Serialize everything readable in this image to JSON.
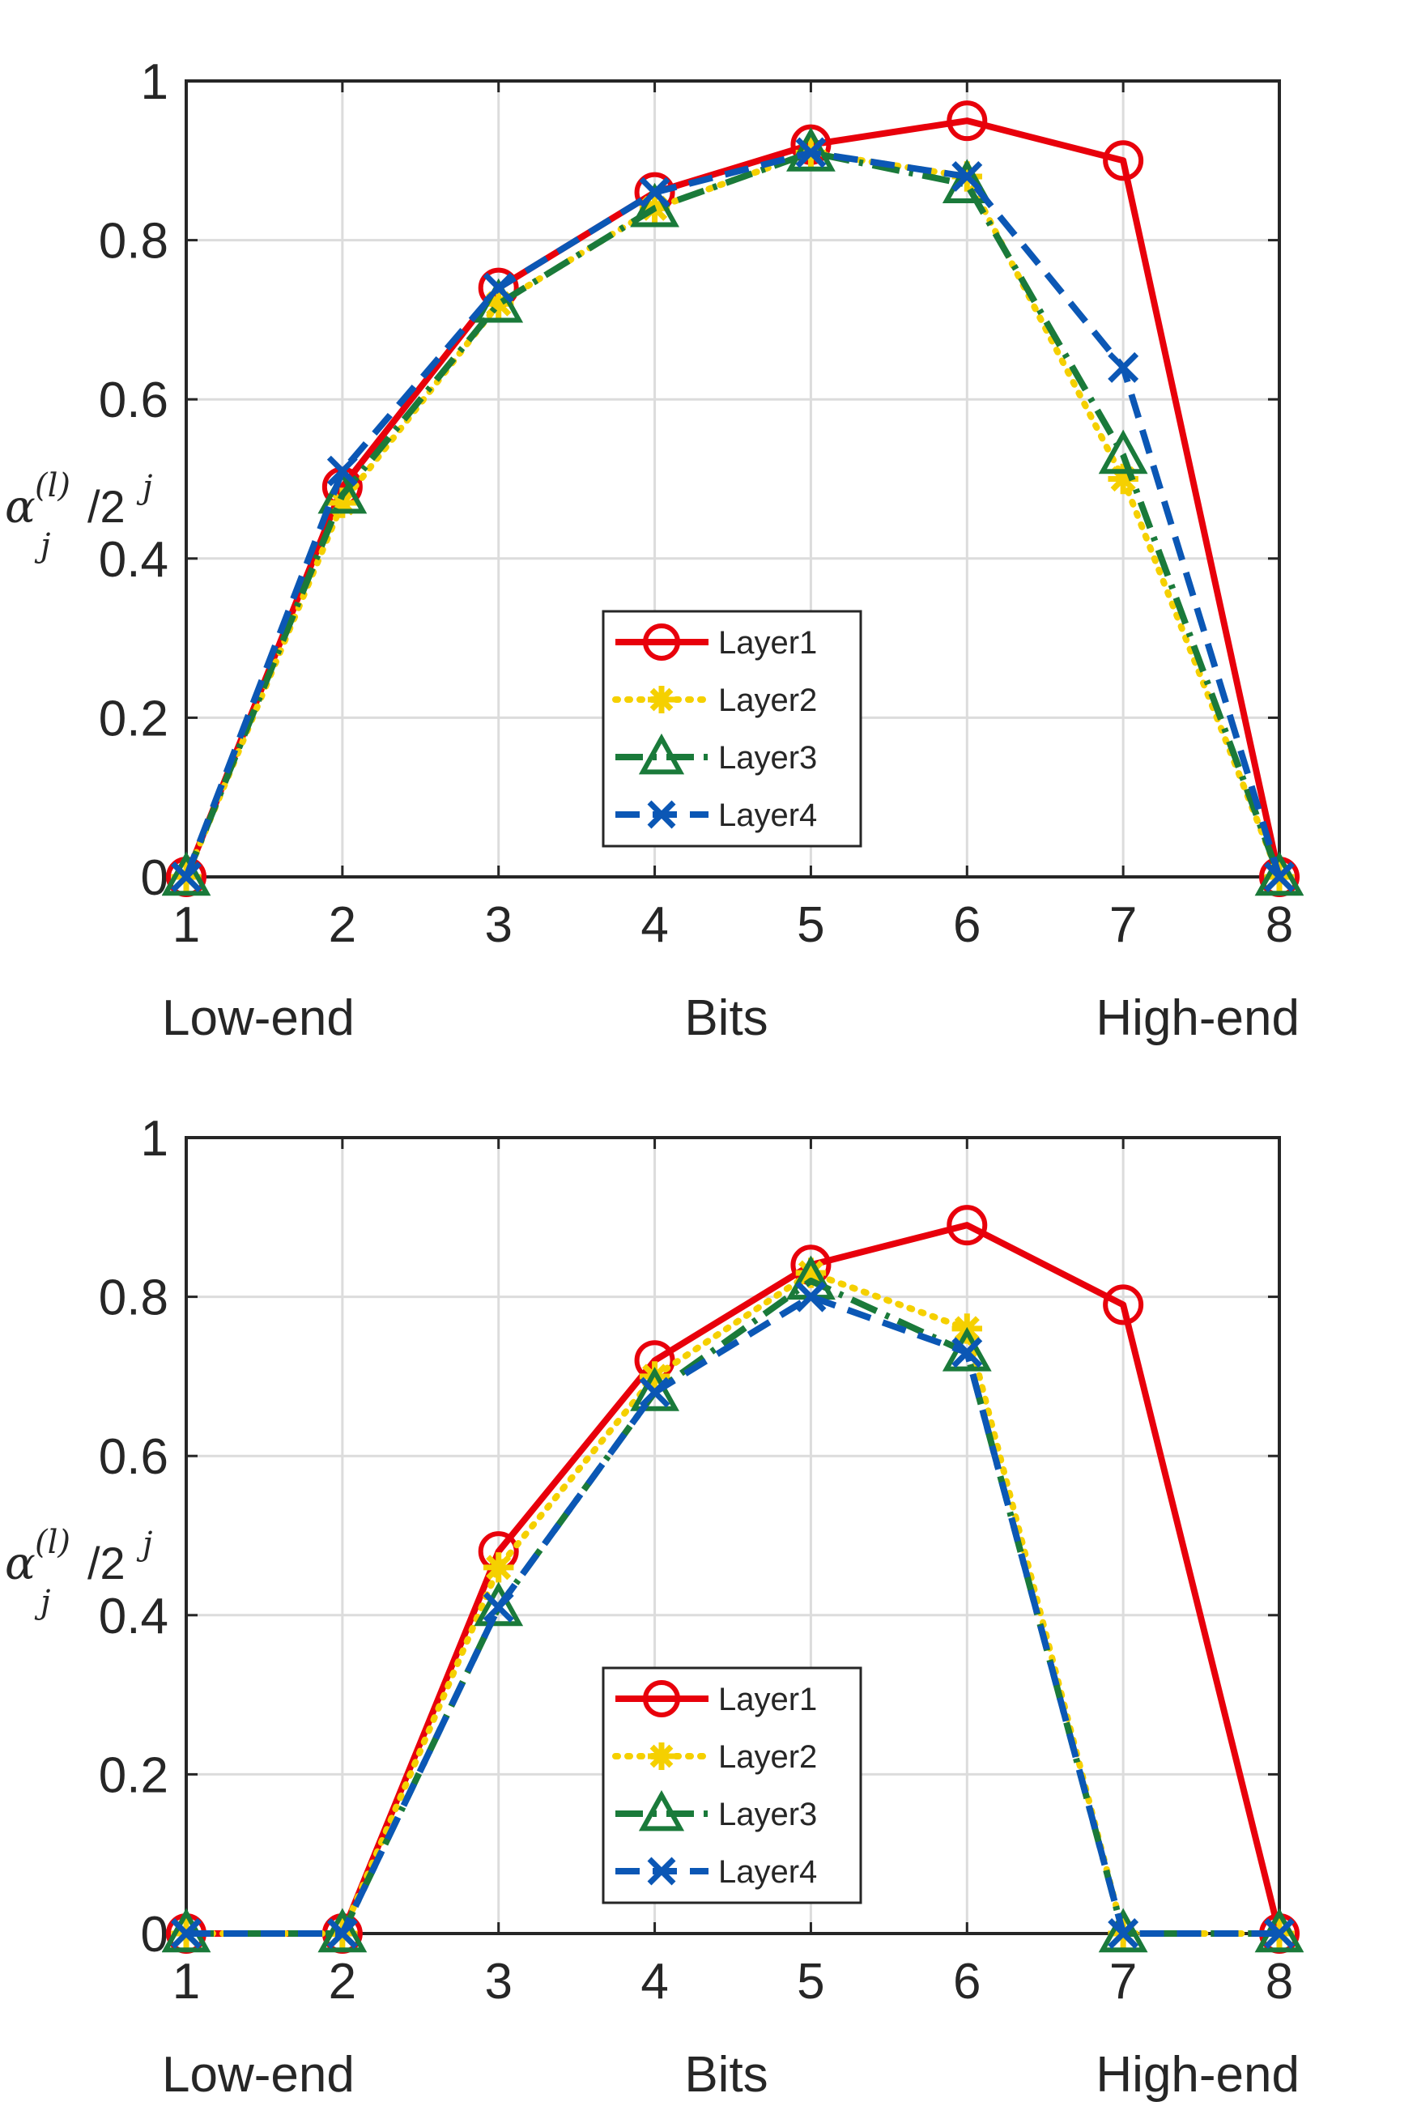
{
  "chart_data": [
    {
      "type": "line",
      "ylabel": {
        "symbol": "α",
        "subscript": "j",
        "superscript": "(l)",
        "text": "/2",
        "exponent": "j"
      },
      "x": [
        1,
        2,
        3,
        4,
        5,
        6,
        7,
        8
      ],
      "xlim": [
        1,
        8
      ],
      "ylim": [
        0,
        1
      ],
      "xticks": [
        "1",
        "2",
        "3",
        "4",
        "5",
        "6",
        "7",
        "8"
      ],
      "yticks": [
        "0",
        "0.2",
        "0.4",
        "0.6",
        "0.8",
        "1"
      ],
      "xlabel": {
        "left": "Low-end",
        "center": "Bits",
        "right": "High-end"
      },
      "grid": true,
      "legend_position": "bottom-center",
      "series": [
        {
          "name": "Layer1",
          "color": "#e8000b",
          "marker": "circle",
          "dash": "solid",
          "values": [
            0,
            0.49,
            0.74,
            0.86,
            0.92,
            0.95,
            0.9,
            0
          ]
        },
        {
          "name": "Layer2",
          "color": "#f5d000",
          "marker": "asterisk",
          "dash": "dotted",
          "values": [
            0,
            0.47,
            0.72,
            0.84,
            0.91,
            0.88,
            0.5,
            0
          ]
        },
        {
          "name": "Layer3",
          "color": "#1a7a3a",
          "marker": "triangle",
          "dash": "dashdot",
          "values": [
            0,
            0.48,
            0.72,
            0.84,
            0.91,
            0.87,
            0.53,
            0
          ]
        },
        {
          "name": "Layer4",
          "color": "#0b57b5",
          "marker": "x",
          "dash": "dashed",
          "values": [
            0,
            0.51,
            0.74,
            0.86,
            0.91,
            0.88,
            0.64,
            0
          ]
        }
      ]
    },
    {
      "type": "line",
      "ylabel": {
        "symbol": "α",
        "subscript": "j",
        "superscript": "(l)",
        "text": "/2",
        "exponent": "j"
      },
      "x": [
        1,
        2,
        3,
        4,
        5,
        6,
        7,
        8
      ],
      "xlim": [
        1,
        8
      ],
      "ylim": [
        0,
        1
      ],
      "xticks": [
        "1",
        "2",
        "3",
        "4",
        "5",
        "6",
        "7",
        "8"
      ],
      "yticks": [
        "0",
        "0.2",
        "0.4",
        "0.6",
        "0.8",
        "1"
      ],
      "xlabel": {
        "left": "Low-end",
        "center": "Bits",
        "right": "High-end"
      },
      "grid": true,
      "legend_position": "bottom-center",
      "series": [
        {
          "name": "Layer1",
          "color": "#e8000b",
          "marker": "circle",
          "dash": "solid",
          "values": [
            0,
            0,
            0.48,
            0.72,
            0.84,
            0.89,
            0.79,
            0
          ]
        },
        {
          "name": "Layer2",
          "color": "#f5d000",
          "marker": "asterisk",
          "dash": "dotted",
          "values": [
            0,
            0,
            0.46,
            0.7,
            0.83,
            0.76,
            0,
            0
          ]
        },
        {
          "name": "Layer3",
          "color": "#1a7a3a",
          "marker": "triangle",
          "dash": "dashdot",
          "values": [
            0,
            0,
            0.41,
            0.68,
            0.82,
            0.73,
            0,
            0
          ]
        },
        {
          "name": "Layer4",
          "color": "#0b57b5",
          "marker": "x",
          "dash": "dashed",
          "values": [
            0,
            0,
            0.41,
            0.68,
            0.8,
            0.73,
            0,
            0
          ]
        }
      ]
    }
  ]
}
